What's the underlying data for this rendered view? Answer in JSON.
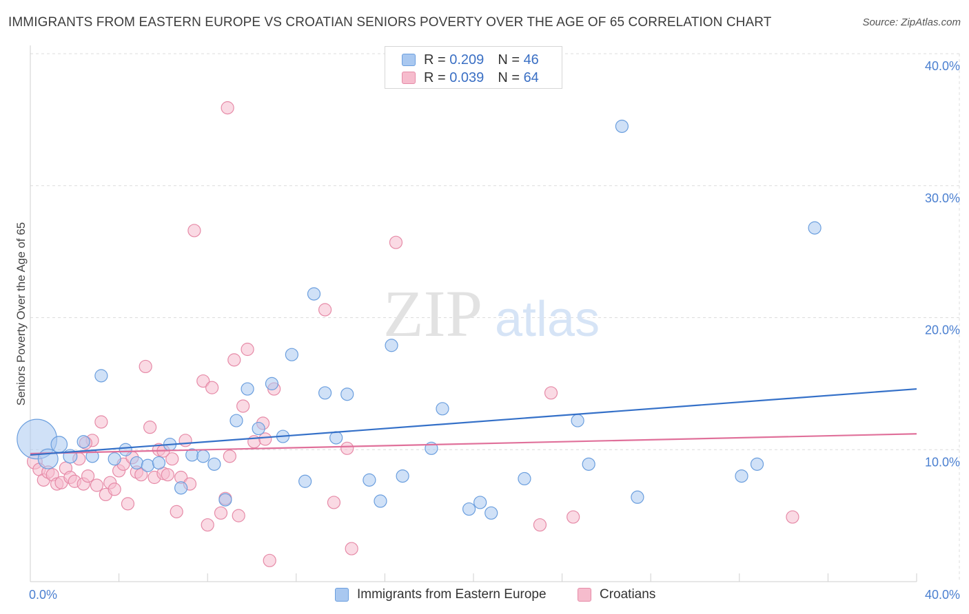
{
  "title": "IMMIGRANTS FROM EASTERN EUROPE VS CROATIAN SENIORS POVERTY OVER THE AGE OF 65 CORRELATION CHART",
  "source": "Source: ZipAtlas.com",
  "watermark": {
    "bold": "ZIP",
    "light": "atlas"
  },
  "colors": {
    "blue_fill": "#a9c8f0",
    "blue_stroke": "#6a9ede",
    "blue_line": "#3470c8",
    "pink_fill": "#f6bccd",
    "pink_stroke": "#e68aa7",
    "pink_line": "#e0709a",
    "grid": "#dcdcdc",
    "axis_text": "#4a7fd0"
  },
  "legend": {
    "rows": [
      {
        "r_label": "R =",
        "r_value": "0.209",
        "n_label": "N =",
        "n_value": "46"
      },
      {
        "r_label": "R =",
        "r_value": "0.039",
        "n_label": "N =",
        "n_value": "64"
      }
    ]
  },
  "bottom_legend": {
    "blue": "Immigrants from Eastern Europe",
    "pink": "Croatians"
  },
  "chart_data": {
    "type": "scatter",
    "title": "IMMIGRANTS FROM EASTERN EUROPE VS CROATIAN SENIORS POVERTY OVER THE AGE OF 65 CORRELATION CHART",
    "xlabel": "",
    "ylabel": "Seniors Poverty Over the Age of 65",
    "xlim": [
      0,
      40
    ],
    "ylim": [
      0,
      40
    ],
    "x_tick_labels": [
      "0.0%",
      "40.0%"
    ],
    "y_ticks": [
      10,
      20,
      30,
      40
    ],
    "y_tick_labels": [
      "10.0%",
      "20.0%",
      "30.0%",
      "40.0%"
    ],
    "grid": true,
    "series": [
      {
        "name": "Immigrants from Eastern Europe",
        "color": "blue",
        "trend": {
          "x": [
            0,
            40
          ],
          "y": [
            9.6,
            14.6
          ]
        },
        "points": [
          {
            "x": 0.3,
            "y": 10.8,
            "s": 3.2
          },
          {
            "x": 0.8,
            "y": 9.3,
            "s": 1.6
          },
          {
            "x": 1.3,
            "y": 10.4,
            "s": 1.3
          },
          {
            "x": 1.8,
            "y": 9.5,
            "s": 1.1
          },
          {
            "x": 2.4,
            "y": 10.6,
            "s": 1.0
          },
          {
            "x": 2.8,
            "y": 9.5,
            "s": 1.0
          },
          {
            "x": 3.2,
            "y": 15.6,
            "s": 1.0
          },
          {
            "x": 3.8,
            "y": 9.3,
            "s": 1.0
          },
          {
            "x": 4.3,
            "y": 10.0,
            "s": 1.0
          },
          {
            "x": 4.8,
            "y": 9.0,
            "s": 1.0
          },
          {
            "x": 5.3,
            "y": 8.8,
            "s": 1.0
          },
          {
            "x": 5.8,
            "y": 9.0,
            "s": 1.0
          },
          {
            "x": 6.3,
            "y": 10.4,
            "s": 1.0
          },
          {
            "x": 6.8,
            "y": 7.1,
            "s": 1.0
          },
          {
            "x": 7.3,
            "y": 9.6,
            "s": 1.0
          },
          {
            "x": 7.8,
            "y": 9.5,
            "s": 1.0
          },
          {
            "x": 8.3,
            "y": 8.9,
            "s": 1.0
          },
          {
            "x": 8.8,
            "y": 6.2,
            "s": 1.0
          },
          {
            "x": 9.3,
            "y": 12.2,
            "s": 1.0
          },
          {
            "x": 9.8,
            "y": 14.6,
            "s": 1.0
          },
          {
            "x": 10.3,
            "y": 11.6,
            "s": 1.0
          },
          {
            "x": 10.9,
            "y": 15.0,
            "s": 1.0
          },
          {
            "x": 11.4,
            "y": 11.0,
            "s": 1.0
          },
          {
            "x": 11.8,
            "y": 17.2,
            "s": 1.0
          },
          {
            "x": 12.4,
            "y": 7.6,
            "s": 1.0
          },
          {
            "x": 12.8,
            "y": 21.8,
            "s": 1.0
          },
          {
            "x": 13.3,
            "y": 14.3,
            "s": 1.0
          },
          {
            "x": 13.8,
            "y": 10.9,
            "s": 1.0
          },
          {
            "x": 14.3,
            "y": 14.2,
            "s": 1.0
          },
          {
            "x": 15.3,
            "y": 7.7,
            "s": 1.0
          },
          {
            "x": 15.8,
            "y": 6.1,
            "s": 1.0
          },
          {
            "x": 16.3,
            "y": 17.9,
            "s": 1.0
          },
          {
            "x": 16.8,
            "y": 8.0,
            "s": 1.0
          },
          {
            "x": 18.1,
            "y": 10.1,
            "s": 1.0
          },
          {
            "x": 18.6,
            "y": 13.1,
            "s": 1.0
          },
          {
            "x": 19.8,
            "y": 5.5,
            "s": 1.0
          },
          {
            "x": 20.3,
            "y": 6.0,
            "s": 1.0
          },
          {
            "x": 20.8,
            "y": 5.2,
            "s": 1.0
          },
          {
            "x": 22.3,
            "y": 7.8,
            "s": 1.0
          },
          {
            "x": 24.7,
            "y": 12.2,
            "s": 1.0
          },
          {
            "x": 25.2,
            "y": 8.9,
            "s": 1.0
          },
          {
            "x": 26.7,
            "y": 34.5,
            "s": 1.0
          },
          {
            "x": 27.4,
            "y": 6.4,
            "s": 1.0
          },
          {
            "x": 32.1,
            "y": 8.0,
            "s": 1.0
          },
          {
            "x": 32.8,
            "y": 8.9,
            "s": 1.0
          },
          {
            "x": 35.4,
            "y": 26.8,
            "s": 1.0
          }
        ]
      },
      {
        "name": "Croatians",
        "color": "pink",
        "trend": {
          "x": [
            0,
            40
          ],
          "y": [
            9.7,
            11.2
          ]
        },
        "points": [
          {
            "x": 0.2,
            "y": 9.1,
            "s": 1.2
          },
          {
            "x": 0.4,
            "y": 8.5,
            "s": 1.0
          },
          {
            "x": 0.6,
            "y": 7.7,
            "s": 1.0
          },
          {
            "x": 0.8,
            "y": 8.3,
            "s": 1.0
          },
          {
            "x": 1.0,
            "y": 8.1,
            "s": 1.0
          },
          {
            "x": 1.2,
            "y": 7.4,
            "s": 1.0
          },
          {
            "x": 1.4,
            "y": 7.5,
            "s": 1.0
          },
          {
            "x": 1.6,
            "y": 8.6,
            "s": 1.0
          },
          {
            "x": 1.8,
            "y": 7.9,
            "s": 1.0
          },
          {
            "x": 2.0,
            "y": 7.6,
            "s": 1.0
          },
          {
            "x": 2.2,
            "y": 9.3,
            "s": 1.0
          },
          {
            "x": 2.4,
            "y": 7.4,
            "s": 1.0
          },
          {
            "x": 2.6,
            "y": 8.0,
            "s": 1.0
          },
          {
            "x": 2.8,
            "y": 10.7,
            "s": 1.0
          },
          {
            "x": 3.0,
            "y": 7.3,
            "s": 1.0
          },
          {
            "x": 3.2,
            "y": 12.1,
            "s": 1.0
          },
          {
            "x": 3.4,
            "y": 6.6,
            "s": 1.0
          },
          {
            "x": 3.6,
            "y": 7.5,
            "s": 1.0
          },
          {
            "x": 3.8,
            "y": 7.0,
            "s": 1.0
          },
          {
            "x": 4.0,
            "y": 8.4,
            "s": 1.0
          },
          {
            "x": 4.2,
            "y": 8.9,
            "s": 1.0
          },
          {
            "x": 4.4,
            "y": 5.9,
            "s": 1.0
          },
          {
            "x": 4.6,
            "y": 9.4,
            "s": 1.0
          },
          {
            "x": 4.8,
            "y": 8.3,
            "s": 1.0
          },
          {
            "x": 5.0,
            "y": 8.1,
            "s": 1.0
          },
          {
            "x": 5.2,
            "y": 16.3,
            "s": 1.0
          },
          {
            "x": 5.4,
            "y": 11.7,
            "s": 1.0
          },
          {
            "x": 5.6,
            "y": 7.9,
            "s": 1.0
          },
          {
            "x": 5.8,
            "y": 10.0,
            "s": 1.0
          },
          {
            "x": 6.0,
            "y": 8.2,
            "s": 1.0
          },
          {
            "x": 6.2,
            "y": 8.1,
            "s": 1.0
          },
          {
            "x": 6.4,
            "y": 9.3,
            "s": 1.0
          },
          {
            "x": 6.6,
            "y": 5.3,
            "s": 1.0
          },
          {
            "x": 6.8,
            "y": 7.9,
            "s": 1.0
          },
          {
            "x": 7.0,
            "y": 10.7,
            "s": 1.0
          },
          {
            "x": 7.2,
            "y": 7.4,
            "s": 1.0
          },
          {
            "x": 7.4,
            "y": 26.6,
            "s": 1.0
          },
          {
            "x": 7.8,
            "y": 15.2,
            "s": 1.0
          },
          {
            "x": 8.0,
            "y": 4.3,
            "s": 1.0
          },
          {
            "x": 8.2,
            "y": 14.7,
            "s": 1.0
          },
          {
            "x": 8.6,
            "y": 5.2,
            "s": 1.0
          },
          {
            "x": 8.8,
            "y": 6.3,
            "s": 1.0
          },
          {
            "x": 9.0,
            "y": 9.5,
            "s": 1.0
          },
          {
            "x": 9.2,
            "y": 16.8,
            "s": 1.0
          },
          {
            "x": 9.4,
            "y": 5.0,
            "s": 1.0
          },
          {
            "x": 9.6,
            "y": 13.3,
            "s": 1.0
          },
          {
            "x": 9.8,
            "y": 17.6,
            "s": 1.0
          },
          {
            "x": 10.1,
            "y": 10.6,
            "s": 1.0
          },
          {
            "x": 10.5,
            "y": 12.0,
            "s": 1.0
          },
          {
            "x": 10.6,
            "y": 10.8,
            "s": 1.0
          },
          {
            "x": 10.8,
            "y": 1.6,
            "s": 1.0
          },
          {
            "x": 11.0,
            "y": 14.6,
            "s": 1.0
          },
          {
            "x": 8.9,
            "y": 35.9,
            "s": 1.0
          },
          {
            "x": 13.3,
            "y": 20.6,
            "s": 1.0
          },
          {
            "x": 13.7,
            "y": 6.0,
            "s": 1.0
          },
          {
            "x": 14.3,
            "y": 10.1,
            "s": 1.0
          },
          {
            "x": 14.5,
            "y": 2.5,
            "s": 1.0
          },
          {
            "x": 16.5,
            "y": 25.7,
            "s": 1.0
          },
          {
            "x": 23.5,
            "y": 14.3,
            "s": 1.0
          },
          {
            "x": 23.0,
            "y": 4.3,
            "s": 1.0
          },
          {
            "x": 24.5,
            "y": 4.9,
            "s": 1.0
          },
          {
            "x": 34.4,
            "y": 4.9,
            "s": 1.0
          },
          {
            "x": 2.5,
            "y": 10.5,
            "s": 1.0
          },
          {
            "x": 6.0,
            "y": 9.9,
            "s": 1.0
          }
        ]
      }
    ]
  }
}
